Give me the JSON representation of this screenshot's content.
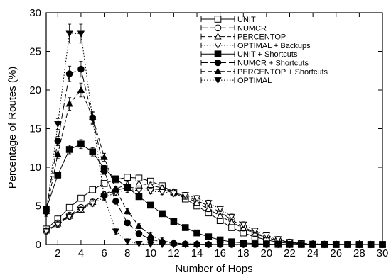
{
  "chart_data": {
    "type": "line",
    "title": "",
    "xlabel": "Number of Hops",
    "ylabel": "Percentage of Routes (%)",
    "xlim": [
      1,
      30
    ],
    "ylim": [
      0,
      30
    ],
    "xticks": [
      2,
      4,
      6,
      8,
      10,
      12,
      14,
      16,
      18,
      20,
      22,
      24,
      26,
      28,
      30
    ],
    "yticks": [
      0,
      5,
      10,
      15,
      20,
      25,
      30
    ],
    "grid": false,
    "legend_position": "top-right",
    "series": [
      {
        "name": "UNIT",
        "marker": "square-open",
        "dash": "solid",
        "error_bars": true,
        "x": [
          1,
          2,
          3,
          4,
          5,
          6,
          7,
          8,
          9,
          10,
          11,
          12,
          13,
          14,
          15,
          16,
          17,
          18,
          19,
          20,
          21,
          22,
          23,
          24,
          25,
          26,
          27,
          28,
          29,
          30
        ],
        "y": [
          2.0,
          3.3,
          4.8,
          6.0,
          7.1,
          7.9,
          8.4,
          8.7,
          8.6,
          8.2,
          7.6,
          6.8,
          5.9,
          5.0,
          4.1,
          3.1,
          2.2,
          1.5,
          1.0,
          0.6,
          0.3,
          0.15,
          0.08,
          0.04,
          0.02,
          0.01,
          0.01,
          0.0,
          0.0,
          0.0
        ]
      },
      {
        "name": "NUMCR",
        "marker": "circle-open",
        "dash": "longdash",
        "error_bars": true,
        "x": [
          1,
          2,
          3,
          4,
          5,
          6,
          7,
          8,
          9,
          10,
          11,
          12,
          13,
          14,
          15,
          16,
          17,
          18,
          19,
          20,
          21,
          22,
          23,
          24,
          25,
          26,
          27,
          28,
          29,
          30
        ],
        "y": [
          1.8,
          2.8,
          3.8,
          4.8,
          5.5,
          6.4,
          7.0,
          7.4,
          7.3,
          7.2,
          7.1,
          6.7,
          6.3,
          5.7,
          5.0,
          4.2,
          3.2,
          2.3,
          1.5,
          1.0,
          0.6,
          0.3,
          0.15,
          0.08,
          0.04,
          0.02,
          0.01,
          0.0,
          0.0,
          0.0
        ]
      },
      {
        "name": "PERCENTOP",
        "marker": "triangle-open",
        "dash": "dashed",
        "error_bars": true,
        "x": [
          1,
          2,
          3,
          4,
          5,
          6,
          7,
          8,
          9,
          10,
          11,
          12,
          13,
          14,
          15,
          16,
          17,
          18,
          19,
          20,
          21,
          22,
          23,
          24,
          25,
          26,
          27,
          28,
          29,
          30
        ],
        "y": [
          1.8,
          2.7,
          3.7,
          4.5,
          5.5,
          6.5,
          7.2,
          7.8,
          7.9,
          7.7,
          7.3,
          6.8,
          6.2,
          5.4,
          4.6,
          3.7,
          2.9,
          2.1,
          1.4,
          0.9,
          0.5,
          0.25,
          0.12,
          0.06,
          0.03,
          0.01,
          0.0,
          0.0,
          0.0,
          0.0
        ]
      },
      {
        "name": "OPTIMAL + Backups",
        "marker": "triangle-down-open",
        "dash": "dotted",
        "error_bars": true,
        "x": [
          1,
          2,
          3,
          4,
          5,
          6,
          7,
          8,
          9,
          10,
          11,
          12,
          13,
          14,
          15,
          16,
          17,
          18,
          19,
          20,
          21,
          22,
          23,
          24,
          25,
          26,
          27,
          28,
          29,
          30
        ],
        "y": [
          1.7,
          2.6,
          3.6,
          4.5,
          5.3,
          6.1,
          6.7,
          7.1,
          7.0,
          6.9,
          6.8,
          6.6,
          6.4,
          6.0,
          5.4,
          4.6,
          3.6,
          2.6,
          1.8,
          1.2,
          0.7,
          0.35,
          0.18,
          0.09,
          0.05,
          0.02,
          0.01,
          0.0,
          0.0,
          0.0
        ]
      },
      {
        "name": "UNIT + Shortcuts",
        "marker": "square-filled",
        "dash": "solid",
        "error_bars": true,
        "x": [
          1,
          2,
          3,
          4,
          5,
          6,
          7,
          8,
          9,
          10,
          11,
          12,
          13,
          14,
          15,
          16,
          17,
          18,
          19,
          20,
          21,
          22,
          23,
          24,
          25,
          26,
          27,
          28,
          29,
          30
        ],
        "y": [
          4.6,
          9.0,
          12.3,
          13.0,
          12.0,
          9.8,
          8.5,
          7.4,
          6.2,
          5.1,
          4.0,
          3.0,
          2.2,
          1.5,
          1.0,
          0.6,
          0.35,
          0.2,
          0.1,
          0.05,
          0.02,
          0.01,
          0.0,
          0.0,
          0.0,
          0.0,
          0.0,
          0.0,
          0.0,
          0.0
        ]
      },
      {
        "name": "NUMCR + Shortcuts",
        "marker": "circle-filled",
        "dash": "longdash",
        "error_bars": true,
        "x": [
          1,
          2,
          3,
          4,
          5,
          6,
          7,
          8,
          9,
          10,
          11,
          12,
          13,
          14,
          15,
          16,
          17,
          18,
          19,
          20,
          21,
          22,
          23,
          24,
          25,
          26,
          27,
          28,
          29,
          30
        ],
        "y": [
          4.5,
          13.4,
          22.1,
          22.7,
          16.4,
          9.5,
          5.6,
          2.8,
          1.4,
          0.7,
          0.3,
          0.15,
          0.06,
          0.03,
          0.01,
          0.0,
          0.0,
          0.0,
          0.0,
          0.0,
          0.0,
          0.0,
          0.0,
          0.0,
          0.0,
          0.0,
          0.0,
          0.0,
          0.0,
          0.0
        ]
      },
      {
        "name": "PERCENTOP + Shortcuts",
        "marker": "triangle-filled",
        "dash": "dashed",
        "error_bars": true,
        "x": [
          1,
          2,
          3,
          4,
          5,
          6,
          7,
          8,
          9,
          10,
          11,
          12,
          13,
          14,
          15,
          16,
          17,
          18,
          19,
          20,
          21,
          22,
          23,
          24,
          25,
          26,
          27,
          28,
          29,
          30
        ],
        "y": [
          4.3,
          11.7,
          18.2,
          20.0,
          16.5,
          11.3,
          7.1,
          4.3,
          2.4,
          1.2,
          0.5,
          0.2,
          0.1,
          0.05,
          0.02,
          0.0,
          0.0,
          0.0,
          0.0,
          0.0,
          0.0,
          0.0,
          0.0,
          0.0,
          0.0,
          0.0,
          0.0,
          0.0,
          0.0,
          0.0
        ]
      },
      {
        "name": "OPTIMAL",
        "marker": "triangle-down-filled",
        "dash": "dotted",
        "error_bars": true,
        "x": [
          1,
          2,
          3,
          4,
          5,
          6,
          7,
          8,
          9,
          10,
          11,
          12,
          13,
          14,
          15,
          16,
          17,
          18,
          19,
          20,
          21,
          22,
          23,
          24,
          25,
          26,
          27,
          28,
          29,
          30
        ],
        "y": [
          4.0,
          15.6,
          27.3,
          27.3,
          16.3,
          6.2,
          1.7,
          0.4,
          0.1,
          0.03,
          0.01,
          0.0,
          0.0,
          0.0,
          0.0,
          0.0,
          0.0,
          0.0,
          0.0,
          0.0,
          0.0,
          0.0,
          0.0,
          0.0,
          0.0,
          0.0,
          0.0,
          0.0,
          0.0,
          0.0
        ]
      }
    ]
  }
}
